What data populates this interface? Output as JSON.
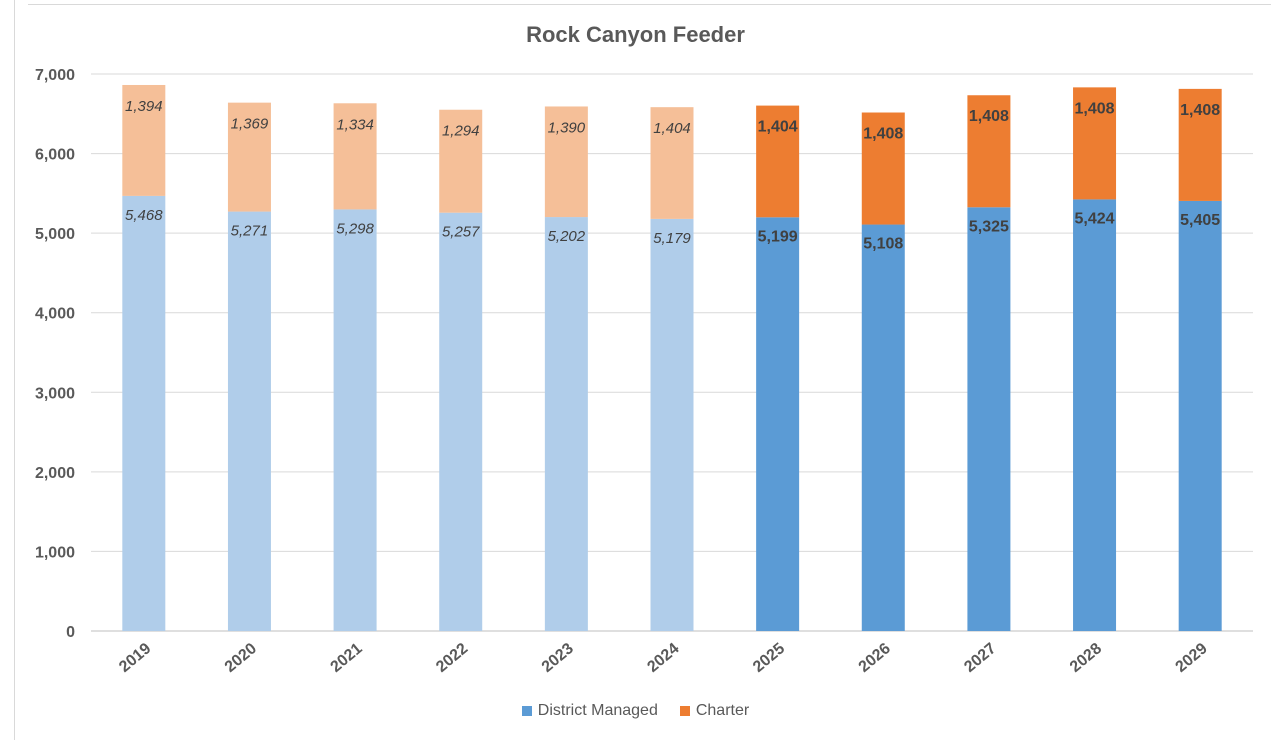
{
  "chart_data": {
    "type": "bar",
    "stacked": true,
    "title": "Rock Canyon Feeder",
    "xlabel": "",
    "ylabel": "",
    "ylim": [
      0,
      7000
    ],
    "y_ticks": [
      "0",
      "1,000",
      "2,000",
      "3,000",
      "4,000",
      "5,000",
      "6,000",
      "7,000"
    ],
    "y_tick_values": [
      0,
      1000,
      2000,
      3000,
      4000,
      5000,
      6000,
      7000
    ],
    "grid": true,
    "legend_position": "bottom",
    "categories": [
      "2019",
      "2020",
      "2021",
      "2022",
      "2023",
      "2024",
      "2025",
      "2026",
      "2027",
      "2028",
      "2029"
    ],
    "projected_from_index": 6,
    "series": [
      {
        "name": "District Managed",
        "values": [
          5468,
          5271,
          5298,
          5257,
          5202,
          5179,
          5199,
          5108,
          5325,
          5424,
          5405
        ],
        "labels": [
          "5,468",
          "5,271",
          "5,298",
          "5,257",
          "5,202",
          "5,179",
          "5,199",
          "5,108",
          "5,325",
          "5,424",
          "5,405"
        ],
        "color": "#5b9bd5",
        "light_color": "#b0cdea"
      },
      {
        "name": "Charter",
        "values": [
          1394,
          1369,
          1334,
          1294,
          1390,
          1404,
          1404,
          1408,
          1408,
          1408,
          1408
        ],
        "labels": [
          "1,394",
          "1,369",
          "1,334",
          "1,294",
          "1,390",
          "1,404",
          "1,404",
          "1,408",
          "1,408",
          "1,408",
          "1,408"
        ],
        "color": "#ed7d31",
        "light_color": "#f5bf98"
      }
    ]
  }
}
